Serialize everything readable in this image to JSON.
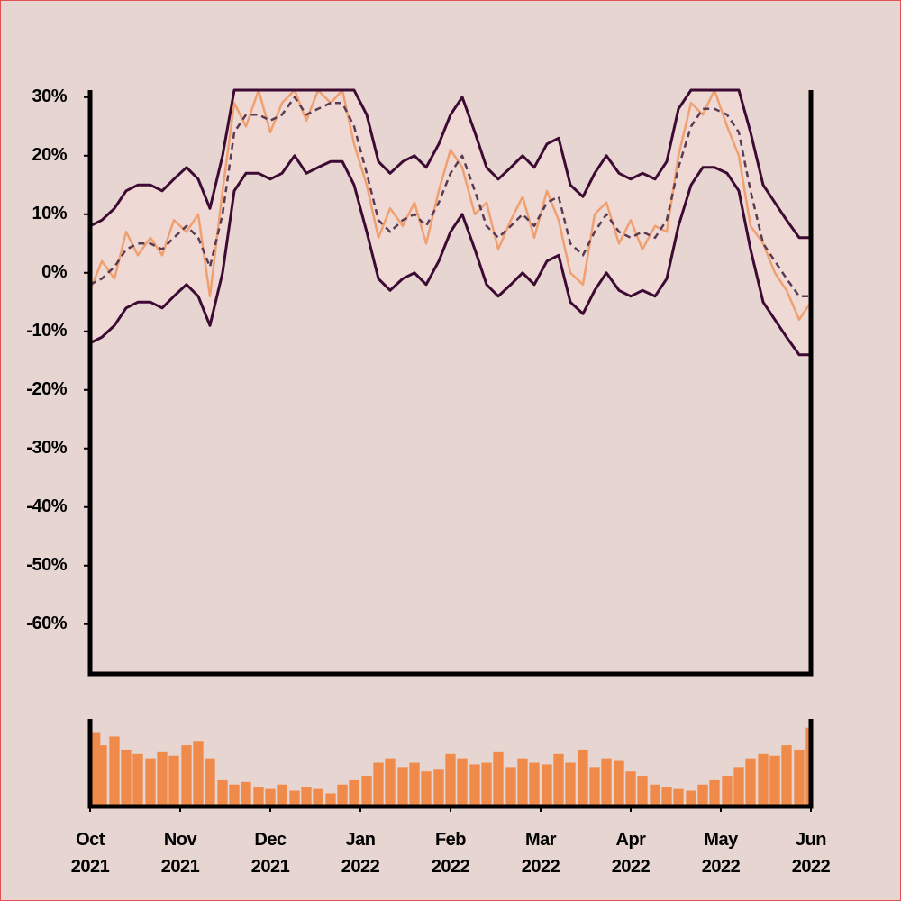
{
  "chart_data": [
    {
      "type": "line",
      "x": [
        0,
        0.13,
        0.27,
        0.4,
        0.53,
        0.67,
        0.8,
        0.93,
        1.07,
        1.2,
        1.33,
        1.47,
        1.6,
        1.73,
        1.87,
        2,
        2.13,
        2.27,
        2.4,
        2.53,
        2.67,
        2.8,
        2.93,
        3.07,
        3.2,
        3.33,
        3.47,
        3.6,
        3.73,
        3.87,
        4,
        4.13,
        4.27,
        4.4,
        4.53,
        4.67,
        4.8,
        4.93,
        5.07,
        5.2,
        5.33,
        5.47,
        5.6,
        5.73,
        5.87,
        6,
        6.13,
        6.27,
        6.4,
        6.53,
        6.67,
        6.8,
        6.93,
        7.07,
        7.2,
        7.33,
        7.47,
        7.6,
        7.73,
        7.87,
        8
      ],
      "xlim": [
        0,
        8
      ],
      "ylim": [
        -68.5,
        31.2
      ],
      "yticks": [
        {
          "value": 30,
          "label": "30%"
        },
        {
          "value": 20,
          "label": "20%"
        },
        {
          "value": 10,
          "label": "10%"
        },
        {
          "value": 0,
          "label": "0%"
        },
        {
          "value": -10,
          "label": "-10%"
        },
        {
          "value": -20,
          "label": "-20%"
        },
        {
          "value": -30,
          "label": "-30%"
        },
        {
          "value": -40,
          "label": "-40%"
        },
        {
          "value": -50,
          "label": "-50%"
        },
        {
          "value": -60,
          "label": "-60%"
        }
      ],
      "band_fill": "#eed9d5",
      "series": [
        {
          "color": "#3d0a33",
          "values": [
            8,
            9,
            11,
            14,
            15,
            15,
            14,
            16,
            18,
            16,
            11,
            20,
            31.2,
            31.2,
            31.2,
            31.2,
            31.2,
            31.2,
            31.2,
            31.2,
            31.2,
            31.2,
            31.2,
            27,
            19,
            17,
            19,
            20,
            18,
            22,
            27,
            30,
            24,
            18,
            16,
            18,
            20,
            18,
            22,
            23,
            15,
            13,
            17,
            20,
            17,
            16,
            17,
            16,
            19,
            28,
            31.2,
            31.2,
            31.2,
            31.2,
            31.2,
            24,
            15,
            12,
            9,
            6,
            6
          ]
        },
        {
          "color": "#5a3a52",
          "dashed": true,
          "values": [
            -2,
            -1,
            1,
            4,
            5,
            5,
            4,
            6,
            8,
            6,
            1,
            10,
            24,
            27,
            27,
            26,
            27,
            30,
            27,
            28,
            29,
            29,
            25,
            17,
            9,
            7,
            9,
            10,
            8,
            12,
            17,
            20,
            14,
            8,
            6,
            8,
            10,
            8,
            12,
            13,
            5,
            3,
            7,
            10,
            7,
            6,
            7,
            6,
            9,
            18,
            25,
            28,
            28,
            27,
            24,
            14,
            5,
            2,
            -1,
            -4,
            -4
          ]
        },
        {
          "color": "#3d0a33",
          "values": [
            -12,
            -11,
            -9,
            -6,
            -5,
            -5,
            -6,
            -4,
            -2,
            -4,
            -9,
            0,
            14,
            17,
            17,
            16,
            17,
            20,
            17,
            18,
            19,
            19,
            15,
            7,
            -1,
            -3,
            -1,
            0,
            -2,
            2,
            7,
            10,
            4,
            -2,
            -4,
            -2,
            0,
            -2,
            2,
            3,
            -5,
            -7,
            -3,
            0,
            -3,
            -4,
            -3,
            -4,
            -1,
            8,
            15,
            18,
            18,
            17,
            14,
            4,
            -5,
            -8,
            -11,
            -14,
            -14
          ]
        },
        {
          "color": "#f0a070",
          "values": [
            -3,
            2,
            -1,
            7,
            3,
            6,
            3,
            9,
            7,
            10,
            -4,
            14,
            29,
            25,
            31.2,
            24,
            29,
            31.2,
            26,
            31.2,
            29,
            31.2,
            22,
            15,
            6,
            11,
            8,
            12,
            5,
            14,
            21,
            18,
            10,
            12,
            4,
            9,
            13,
            6,
            14,
            9,
            0,
            -2,
            10,
            12,
            5,
            9,
            4,
            8,
            7,
            20,
            29,
            27,
            31.2,
            25,
            20,
            8,
            5,
            0,
            -3,
            -8,
            -5
          ]
        }
      ]
    },
    {
      "type": "bar",
      "x": [
        0,
        0.13,
        0.27,
        0.4,
        0.53,
        0.67,
        0.8,
        0.93,
        1.07,
        1.2,
        1.33,
        1.47,
        1.6,
        1.73,
        1.87,
        2,
        2.13,
        2.27,
        2.4,
        2.53,
        2.67,
        2.8,
        2.93,
        3.07,
        3.2,
        3.33,
        3.47,
        3.6,
        3.73,
        3.87,
        4,
        4.13,
        4.27,
        4.4,
        4.53,
        4.67,
        4.8,
        4.93,
        5.07,
        5.2,
        5.33,
        5.47,
        5.6,
        5.73,
        5.87,
        6,
        6.13,
        6.27,
        6.4,
        6.53,
        6.67,
        6.8,
        6.93,
        7.07,
        7.2,
        7.33,
        7.47,
        7.6,
        7.73,
        7.87,
        8
      ],
      "values": [
        85,
        70,
        80,
        65,
        60,
        55,
        62,
        58,
        70,
        75,
        55,
        30,
        25,
        28,
        22,
        20,
        25,
        18,
        22,
        20,
        15,
        25,
        30,
        35,
        50,
        55,
        45,
        50,
        40,
        42,
        60,
        55,
        48,
        50,
        62,
        45,
        55,
        50,
        48,
        60,
        50,
        65,
        45,
        55,
        52,
        40,
        35,
        25,
        22,
        20,
        18,
        25,
        30,
        35,
        45,
        55,
        60,
        58,
        70,
        65,
        90
      ],
      "color": "#f08a4b",
      "xlim": [
        0,
        8
      ],
      "ylim": [
        0,
        100
      ],
      "xticks": [
        {
          "value": 0,
          "label": "Oct 2021"
        },
        {
          "value": 1,
          "label": "Nov 2021"
        },
        {
          "value": 2,
          "label": "Dec 2021"
        },
        {
          "value": 3,
          "label": "Jan 2022"
        },
        {
          "value": 4,
          "label": "Feb 2022"
        },
        {
          "value": 5,
          "label": "Mar 2022"
        },
        {
          "value": 6,
          "label": "Apr 2022"
        },
        {
          "value": 7,
          "label": "May 2022"
        },
        {
          "value": 8,
          "label": "Jun 2022"
        }
      ]
    }
  ]
}
